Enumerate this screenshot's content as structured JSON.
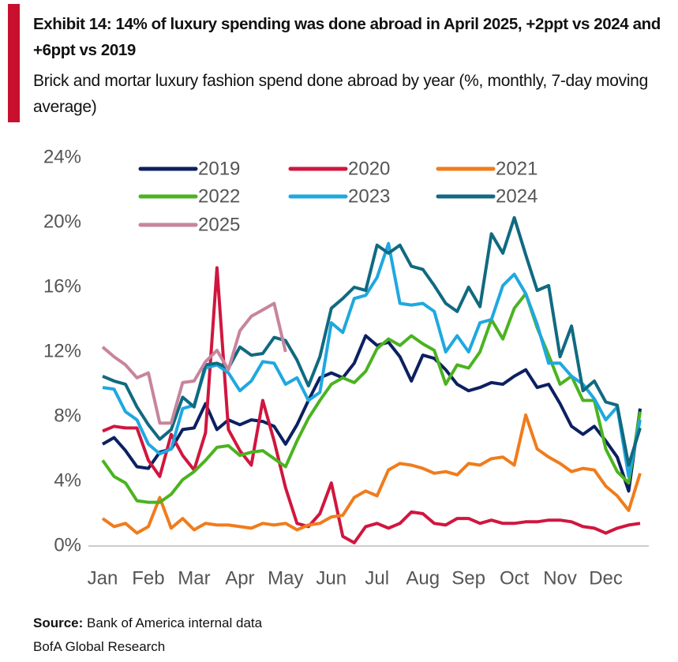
{
  "chart_data": {
    "type": "line",
    "title": "Exhibit 14: 14% of luxury spending was done abroad in April 2025, +2ppt vs 2024 and +6ppt vs 2019",
    "subtitle": "Brick and mortar luxury fashion spend done abroad by year (%, monthly, 7-day moving average)",
    "categories": [
      "Jan",
      null,
      null,
      null,
      "Feb",
      null,
      null,
      null,
      "Mar",
      null,
      null,
      null,
      "Apr",
      null,
      null,
      null,
      "May",
      null,
      null,
      null,
      "Jun",
      null,
      null,
      null,
      "Jul",
      null,
      null,
      null,
      "Aug",
      null,
      null,
      null,
      "Sep",
      null,
      null,
      null,
      "Oct",
      null,
      null,
      null,
      "Nov",
      null,
      null,
      null,
      "Dec",
      null,
      null,
      null
    ],
    "ylim": [
      0,
      24
    ],
    "yticks": [
      {
        "value": 0,
        "label": "0%"
      },
      {
        "value": 4,
        "label": "4%"
      },
      {
        "value": 8,
        "label": "8%"
      },
      {
        "value": 12,
        "label": "12%"
      },
      {
        "value": 16,
        "label": "16%"
      },
      {
        "value": 20,
        "label": "20%"
      },
      {
        "value": 24,
        "label": "24%"
      }
    ],
    "legend": "top",
    "series": [
      {
        "name": "2019",
        "color": "#0c2061",
        "values": [
          6.3,
          6.7,
          5.9,
          4.9,
          4.8,
          5.8,
          6.0,
          7.2,
          7.3,
          8.8,
          7.2,
          7.8,
          7.5,
          7.8,
          7.7,
          7.4,
          6.3,
          7.5,
          9.0,
          10.4,
          10.7,
          10.4,
          11.3,
          13.0,
          12.4,
          12.6,
          11.7,
          10.2,
          11.8,
          11.6,
          10.9,
          10.0,
          9.6,
          9.8,
          10.1,
          10.0,
          10.5,
          10.9,
          9.8,
          10.0,
          8.8,
          7.4,
          6.9,
          7.4,
          6.5,
          5.5,
          3.4,
          8.5
        ]
      },
      {
        "name": "2020",
        "color": "#d0163f",
        "values": [
          7.1,
          7.4,
          7.3,
          7.3,
          5.3,
          4.3,
          6.9,
          5.6,
          4.7,
          7.0,
          17.2,
          7.2,
          5.9,
          5.0,
          9.0,
          6.5,
          3.6,
          1.4,
          1.2,
          2.0,
          3.9,
          0.6,
          0.2,
          1.2,
          1.4,
          1.1,
          1.4,
          2.1,
          2.0,
          1.4,
          1.3,
          1.7,
          1.7,
          1.4,
          1.6,
          1.4,
          1.4,
          1.5,
          1.5,
          1.6,
          1.6,
          1.5,
          1.2,
          1.1,
          0.8,
          1.1,
          1.3,
          1.4
        ]
      },
      {
        "name": "2021",
        "color": "#f07c1c",
        "values": [
          1.7,
          1.2,
          1.4,
          0.8,
          1.2,
          3.0,
          1.1,
          1.7,
          1.0,
          1.4,
          1.3,
          1.3,
          1.2,
          1.1,
          1.4,
          1.3,
          1.4,
          1.0,
          1.3,
          1.4,
          1.8,
          1.9,
          3.0,
          3.4,
          3.1,
          4.7,
          5.1,
          5.0,
          4.8,
          4.5,
          4.6,
          4.4,
          5.1,
          5.0,
          5.4,
          5.5,
          5.0,
          8.1,
          6.0,
          5.5,
          5.1,
          4.6,
          4.8,
          4.7,
          3.7,
          3.1,
          2.2,
          4.5
        ]
      },
      {
        "name": "2022",
        "color": "#4bb320",
        "values": [
          5.3,
          4.3,
          3.9,
          2.8,
          2.7,
          2.7,
          3.2,
          4.1,
          4.6,
          5.3,
          6.1,
          6.2,
          5.6,
          5.8,
          5.9,
          5.4,
          4.9,
          6.5,
          7.9,
          9.0,
          10.0,
          10.4,
          10.1,
          10.8,
          12.2,
          12.8,
          12.4,
          13.0,
          12.5,
          12.1,
          10.0,
          11.2,
          11.0,
          12.0,
          14.0,
          12.8,
          14.7,
          15.6,
          13.5,
          11.8,
          10.0,
          10.5,
          9.0,
          9.0,
          6.0,
          4.6,
          3.9,
          8.3
        ]
      },
      {
        "name": "2023",
        "color": "#1fa8e0",
        "values": [
          9.8,
          9.7,
          8.3,
          7.8,
          6.3,
          5.7,
          6.0,
          8.5,
          8.7,
          11.0,
          11.2,
          10.7,
          9.6,
          10.2,
          11.4,
          11.3,
          10.0,
          10.4,
          9.0,
          9.5,
          13.8,
          13.2,
          15.3,
          15.5,
          16.6,
          18.7,
          15.0,
          14.9,
          15.0,
          14.5,
          12.0,
          13.0,
          12.0,
          13.8,
          14.0,
          16.1,
          16.8,
          15.6,
          13.7,
          11.3,
          11.3,
          10.5,
          10.0,
          9.1,
          7.8,
          8.6,
          4.3,
          7.8
        ]
      },
      {
        "name": "2024",
        "color": "#106a80",
        "values": [
          10.5,
          10.2,
          10.0,
          8.6,
          7.5,
          6.6,
          7.2,
          9.2,
          8.6,
          11.2,
          11.3,
          11.0,
          12.3,
          11.8,
          11.9,
          12.9,
          12.7,
          11.5,
          9.9,
          11.7,
          14.7,
          15.3,
          16.0,
          15.8,
          18.6,
          18.1,
          18.6,
          17.3,
          17.1,
          16.1,
          15.0,
          14.5,
          16.0,
          14.8,
          19.3,
          18.1,
          20.3,
          18.0,
          15.8,
          16.1,
          11.7,
          13.6,
          9.6,
          10.2,
          8.9,
          8.7,
          5.0,
          7.3
        ]
      },
      {
        "name": "2025",
        "color": "#c7859c",
        "values": [
          12.3,
          11.7,
          11.2,
          10.4,
          10.7,
          7.6,
          7.6,
          10.1,
          10.2,
          11.4,
          12.1,
          10.9,
          13.3,
          14.2,
          14.6,
          15.0,
          12.0,
          null,
          null,
          null,
          null,
          null,
          null,
          null,
          null,
          null,
          null,
          null,
          null,
          null,
          null,
          null,
          null,
          null,
          null,
          null,
          null,
          null,
          null,
          null,
          null,
          null,
          null,
          null,
          null,
          null,
          null,
          null
        ]
      }
    ]
  },
  "footer": {
    "source_label": "Source:",
    "source_text": "Bank of America internal data",
    "publisher": "BofA Global Research"
  }
}
